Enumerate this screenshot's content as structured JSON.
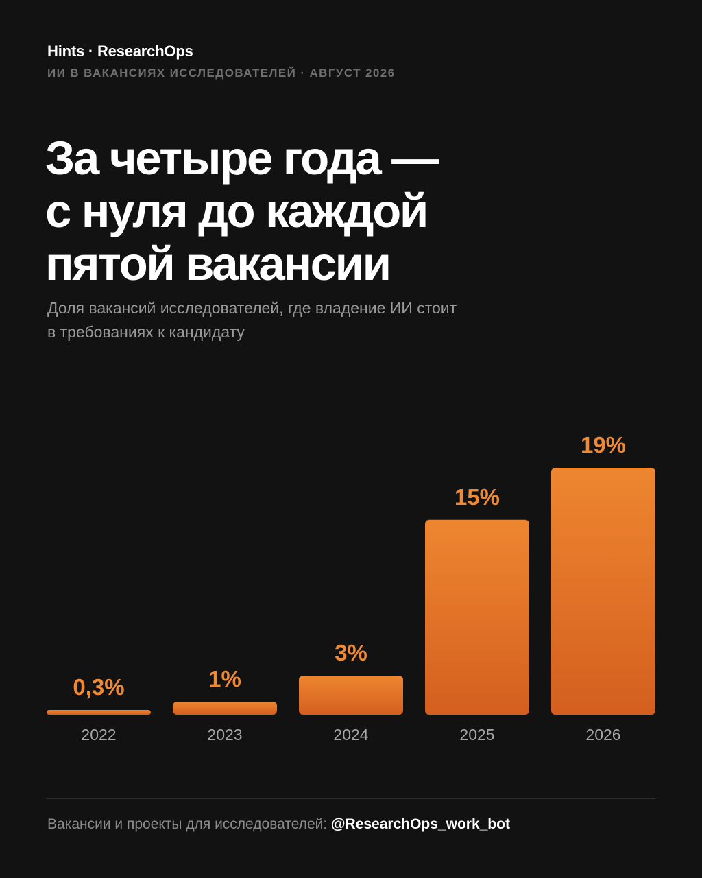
{
  "header": {
    "brand": "Hints",
    "brand_separator": " · ",
    "brand_product": "ResearchOps",
    "kicker": "ИИ В ВАКАНСИЯХ ИССЛЕДОВАТЕЛЕЙ · АВГУСТ 2026"
  },
  "headline": {
    "lines": [
      "За четыре года —",
      "с нуля до каждой",
      "пятой вакансии"
    ]
  },
  "subtitle": {
    "lines": [
      "Доля вакансий исследователей, где владение ИИ стоит",
      "в требованиях к кандидату"
    ]
  },
  "chart_data": {
    "type": "bar",
    "categories": [
      "2022",
      "2023",
      "2024",
      "2025",
      "2026"
    ],
    "values": [
      0.3,
      1,
      3,
      15,
      19
    ],
    "data_labels": [
      "0,3%",
      "1%",
      "3%",
      "15%",
      "19%"
    ],
    "title": "",
    "xlabel": "",
    "ylabel": "",
    "ylim": [
      0,
      19
    ],
    "grid": false,
    "legend": "none",
    "colors": {
      "bar_top": "#ee8630",
      "bar_bottom": "#d45f1f",
      "label": "#ee8a35",
      "tick": "#a6a6a6"
    }
  },
  "footer": {
    "text": "Вакансии и проекты для исследователей: ",
    "handle": "@ResearchOps_work_bot"
  }
}
